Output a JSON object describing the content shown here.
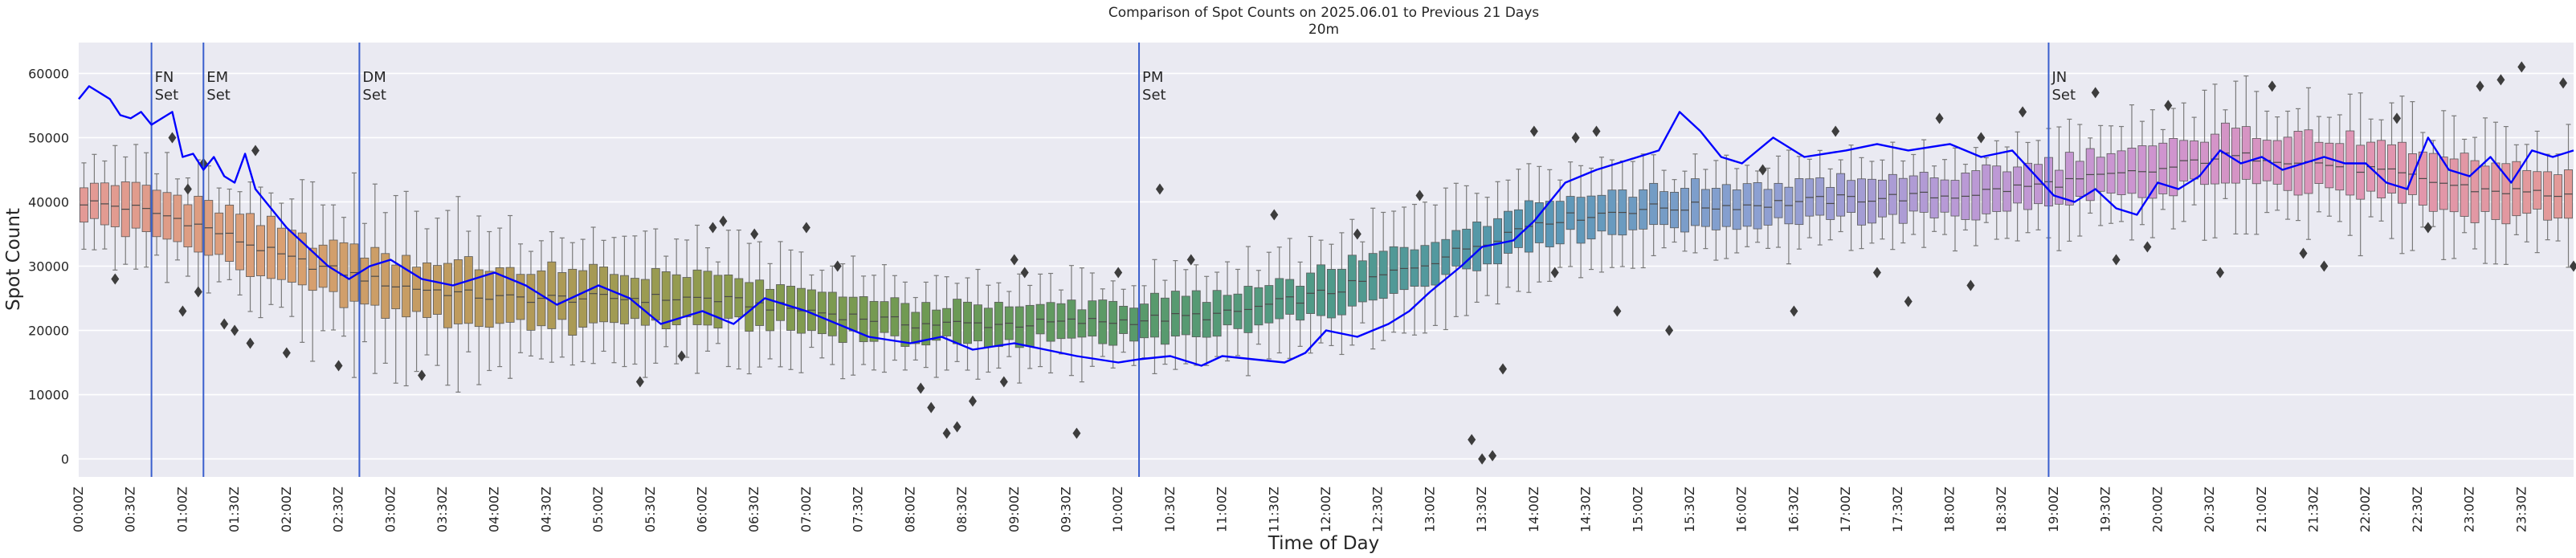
{
  "chart_data": {
    "type": "box-with-line",
    "title": "Comparison of Spot Counts on 2025.06.01 to Previous 21 Days",
    "subtitle": "20m",
    "xlabel": "Time of Day",
    "ylabel": "Spot Count",
    "ylim": [
      -2800,
      64800
    ],
    "grid": true,
    "y_ticks": [
      0,
      10000,
      20000,
      30000,
      40000,
      50000,
      60000
    ],
    "y_tick_labels": [
      "0",
      "10000",
      "20000",
      "30000",
      "40000",
      "50000",
      "60000"
    ],
    "x_interval_minutes": 6,
    "x_tick_labels": [
      "00:00Z",
      "00:30Z",
      "01:00Z",
      "01:30Z",
      "02:00Z",
      "02:30Z",
      "03:00Z",
      "03:30Z",
      "04:00Z",
      "04:30Z",
      "05:00Z",
      "05:30Z",
      "06:00Z",
      "06:30Z",
      "07:00Z",
      "07:30Z",
      "08:00Z",
      "08:30Z",
      "09:00Z",
      "09:30Z",
      "10:00Z",
      "10:30Z",
      "11:00Z",
      "11:30Z",
      "12:00Z",
      "12:30Z",
      "13:00Z",
      "13:30Z",
      "14:00Z",
      "14:30Z",
      "15:00Z",
      "15:30Z",
      "16:00Z",
      "16:30Z",
      "17:00Z",
      "17:30Z",
      "18:00Z",
      "18:30Z",
      "19:00Z",
      "19:30Z",
      "20:00Z",
      "20:30Z",
      "21:00Z",
      "21:30Z",
      "22:00Z",
      "22:30Z",
      "23:00Z",
      "23:30Z"
    ],
    "box_profile_times_h": [
      0,
      0.5,
      1.0,
      1.5,
      2.0,
      3.0,
      4.0,
      5.0,
      6.0,
      7.0,
      8.0,
      9.0,
      10.0,
      11.0,
      12.0,
      13.0,
      14.0,
      15.0,
      16.0,
      17.0,
      18.0,
      19.0,
      20.0,
      20.5,
      21.0,
      22.0,
      23.0,
      24.0
    ],
    "box_profile_median": [
      40000,
      39000,
      37000,
      34000,
      31000,
      27000,
      25000,
      25000,
      25000,
      23000,
      21000,
      21000,
      21500,
      22500,
      26000,
      31000,
      37000,
      39000,
      39500,
      40500,
      41000,
      43000,
      45000,
      47000,
      47000,
      45000,
      42000,
      41000
    ],
    "box_profile_iqr_half": [
      3500,
      3500,
      3500,
      4000,
      4000,
      4500,
      4500,
      4000,
      3500,
      3000,
      2800,
      2800,
      2800,
      3000,
      3500,
      3500,
      3500,
      3000,
      3000,
      3000,
      3000,
      3500,
      3500,
      4000,
      4000,
      4000,
      4000,
      3500
    ],
    "box_profile_whisker_half": [
      8000,
      8000,
      9000,
      10000,
      12000,
      13000,
      12000,
      10000,
      9000,
      8000,
      7000,
      7000,
      7000,
      8000,
      9000,
      9000,
      8000,
      7000,
      7000,
      7000,
      7000,
      8000,
      9000,
      10000,
      10000,
      10000,
      9000,
      9000
    ],
    "series": [
      {
        "name": "2025.06.01",
        "times_h": [
          0,
          0.1,
          0.2,
          0.3,
          0.4,
          0.5,
          0.6,
          0.7,
          0.8,
          0.9,
          1.0,
          1.1,
          1.2,
          1.3,
          1.4,
          1.5,
          1.6,
          1.7,
          1.8,
          2.0,
          2.2,
          2.4,
          2.6,
          2.8,
          3.0,
          3.3,
          3.6,
          4.0,
          4.3,
          4.6,
          5.0,
          5.3,
          5.6,
          6.0,
          6.3,
          6.6,
          7.0,
          7.3,
          7.6,
          8.0,
          8.3,
          8.6,
          9.0,
          9.3,
          9.6,
          10.0,
          10.2,
          10.5,
          10.8,
          11.0,
          11.3,
          11.6,
          11.8,
          12.0,
          12.3,
          12.6,
          12.8,
          13.0,
          13.3,
          13.5,
          13.8,
          14.0,
          14.3,
          14.6,
          15.0,
          15.2,
          15.4,
          15.6,
          15.8,
          16.0,
          16.3,
          16.6,
          17.0,
          17.3,
          17.6,
          18.0,
          18.3,
          18.6,
          19.0,
          19.2,
          19.4,
          19.6,
          19.8,
          20.0,
          20.2,
          20.4,
          20.6,
          20.8,
          21.0,
          21.2,
          21.4,
          21.6,
          21.8,
          22.0,
          22.2,
          22.4,
          22.6,
          22.8,
          23.0,
          23.2,
          23.4,
          23.6,
          23.8,
          24.0
        ],
        "values": [
          56000,
          58000,
          57000,
          56000,
          53500,
          53000,
          54000,
          52000,
          53000,
          54000,
          47000,
          47500,
          45000,
          47000,
          44000,
          43000,
          47500,
          42000,
          40000,
          36000,
          33000,
          30000,
          28000,
          30000,
          31000,
          28000,
          27000,
          29000,
          27000,
          24000,
          27000,
          25000,
          21000,
          23000,
          21000,
          25000,
          23000,
          21000,
          19000,
          18000,
          19000,
          17000,
          18000,
          17000,
          16000,
          15000,
          15500,
          16000,
          14500,
          16000,
          15500,
          15000,
          16500,
          20000,
          19000,
          21000,
          23000,
          26000,
          30000,
          33000,
          34000,
          37000,
          43000,
          45000,
          47000,
          48000,
          54000,
          51000,
          47000,
          46000,
          50000,
          47000,
          48000,
          49000,
          48000,
          49000,
          47000,
          48000,
          41000,
          40000,
          42000,
          39000,
          38000,
          43000,
          42000,
          44000,
          48000,
          46000,
          47000,
          45000,
          46000,
          47000,
          46000,
          46000,
          43000,
          42000,
          50000,
          45000,
          44000,
          47000,
          43000,
          48000,
          47000,
          48000
        ]
      }
    ],
    "vertical_markers": [
      {
        "label": "FN\nSet",
        "time": "00:42Z",
        "time_h": 0.7
      },
      {
        "label": "EM\nSet",
        "time": "01:12Z",
        "time_h": 1.2
      },
      {
        "label": "DM\nSet",
        "time": "02:42Z",
        "time_h": 2.7
      },
      {
        "label": "PM\nSet",
        "time": "10:12Z",
        "time_h": 10.2
      },
      {
        "label": "JN\nSet",
        "time": "18:57Z",
        "time_h": 18.95
      }
    ],
    "outliers": [
      {
        "time_h": 0.35,
        "value": 28000
      },
      {
        "time_h": 0.9,
        "value": 50000
      },
      {
        "time_h": 1.0,
        "value": 23000
      },
      {
        "time_h": 1.05,
        "value": 42000
      },
      {
        "time_h": 1.15,
        "value": 26000
      },
      {
        "time_h": 1.2,
        "value": 46000
      },
      {
        "time_h": 1.4,
        "value": 21000
      },
      {
        "time_h": 1.5,
        "value": 20000
      },
      {
        "time_h": 1.65,
        "value": 18000
      },
      {
        "time_h": 1.7,
        "value": 48000
      },
      {
        "time_h": 2.0,
        "value": 16500
      },
      {
        "time_h": 2.5,
        "value": 14500
      },
      {
        "time_h": 3.3,
        "value": 13000
      },
      {
        "time_h": 5.4,
        "value": 12000
      },
      {
        "time_h": 5.8,
        "value": 16000
      },
      {
        "time_h": 6.1,
        "value": 36000
      },
      {
        "time_h": 6.2,
        "value": 37000
      },
      {
        "time_h": 6.5,
        "value": 35000
      },
      {
        "time_h": 7.0,
        "value": 36000
      },
      {
        "time_h": 7.3,
        "value": 30000
      },
      {
        "time_h": 8.1,
        "value": 11000
      },
      {
        "time_h": 8.2,
        "value": 8000
      },
      {
        "time_h": 8.35,
        "value": 4000
      },
      {
        "time_h": 8.45,
        "value": 5000
      },
      {
        "time_h": 8.6,
        "value": 9000
      },
      {
        "time_h": 8.9,
        "value": 12000
      },
      {
        "time_h": 9.0,
        "value": 31000
      },
      {
        "time_h": 9.1,
        "value": 29000
      },
      {
        "time_h": 9.6,
        "value": 4000
      },
      {
        "time_h": 10.0,
        "value": 29000
      },
      {
        "time_h": 10.4,
        "value": 42000
      },
      {
        "time_h": 10.7,
        "value": 31000
      },
      {
        "time_h": 11.5,
        "value": 38000
      },
      {
        "time_h": 12.3,
        "value": 35000
      },
      {
        "time_h": 12.9,
        "value": 41000
      },
      {
        "time_h": 13.4,
        "value": 3000
      },
      {
        "time_h": 13.5,
        "value": 0
      },
      {
        "time_h": 13.6,
        "value": 500
      },
      {
        "time_h": 13.7,
        "value": 14000
      },
      {
        "time_h": 14.0,
        "value": 51000
      },
      {
        "time_h": 14.2,
        "value": 29000
      },
      {
        "time_h": 14.4,
        "value": 50000
      },
      {
        "time_h": 14.6,
        "value": 51000
      },
      {
        "time_h": 14.8,
        "value": 23000
      },
      {
        "time_h": 15.3,
        "value": 20000
      },
      {
        "time_h": 16.2,
        "value": 45000
      },
      {
        "time_h": 16.5,
        "value": 23000
      },
      {
        "time_h": 16.9,
        "value": 51000
      },
      {
        "time_h": 17.3,
        "value": 29000
      },
      {
        "time_h": 17.6,
        "value": 24500
      },
      {
        "time_h": 17.9,
        "value": 53000
      },
      {
        "time_h": 18.2,
        "value": 27000
      },
      {
        "time_h": 18.3,
        "value": 50000
      },
      {
        "time_h": 18.7,
        "value": 54000
      },
      {
        "time_h": 19.4,
        "value": 57000
      },
      {
        "time_h": 19.6,
        "value": 31000
      },
      {
        "time_h": 19.9,
        "value": 33000
      },
      {
        "time_h": 20.1,
        "value": 55000
      },
      {
        "time_h": 20.6,
        "value": 29000
      },
      {
        "time_h": 21.1,
        "value": 58000
      },
      {
        "time_h": 21.4,
        "value": 32000
      },
      {
        "time_h": 21.6,
        "value": 30000
      },
      {
        "time_h": 22.3,
        "value": 53000
      },
      {
        "time_h": 22.6,
        "value": 36000
      },
      {
        "time_h": 23.1,
        "value": 58000
      },
      {
        "time_h": 23.3,
        "value": 59000
      },
      {
        "time_h": 23.5,
        "value": 61000
      },
      {
        "time_h": 23.9,
        "value": 58500
      },
      {
        "time_h": 24.0,
        "value": 30000
      }
    ],
    "colors": {
      "figure_background": "#ffffff",
      "plot_background": "#eaeaf2",
      "grid": "#ffffff",
      "line": "#0000ff",
      "markers": "#3a5fcd",
      "whisker": "#7a7a7a",
      "outlier": "#3d3d3d",
      "box_palette": [
        "#e39a96",
        "#d9a070",
        "#b89a5a",
        "#8f9b4e",
        "#6f9a52",
        "#5a9a68",
        "#4f9a8a",
        "#5797b4",
        "#8aa0d2",
        "#b99ad6",
        "#cf94cf",
        "#e195b2",
        "#e39a96"
      ]
    }
  }
}
